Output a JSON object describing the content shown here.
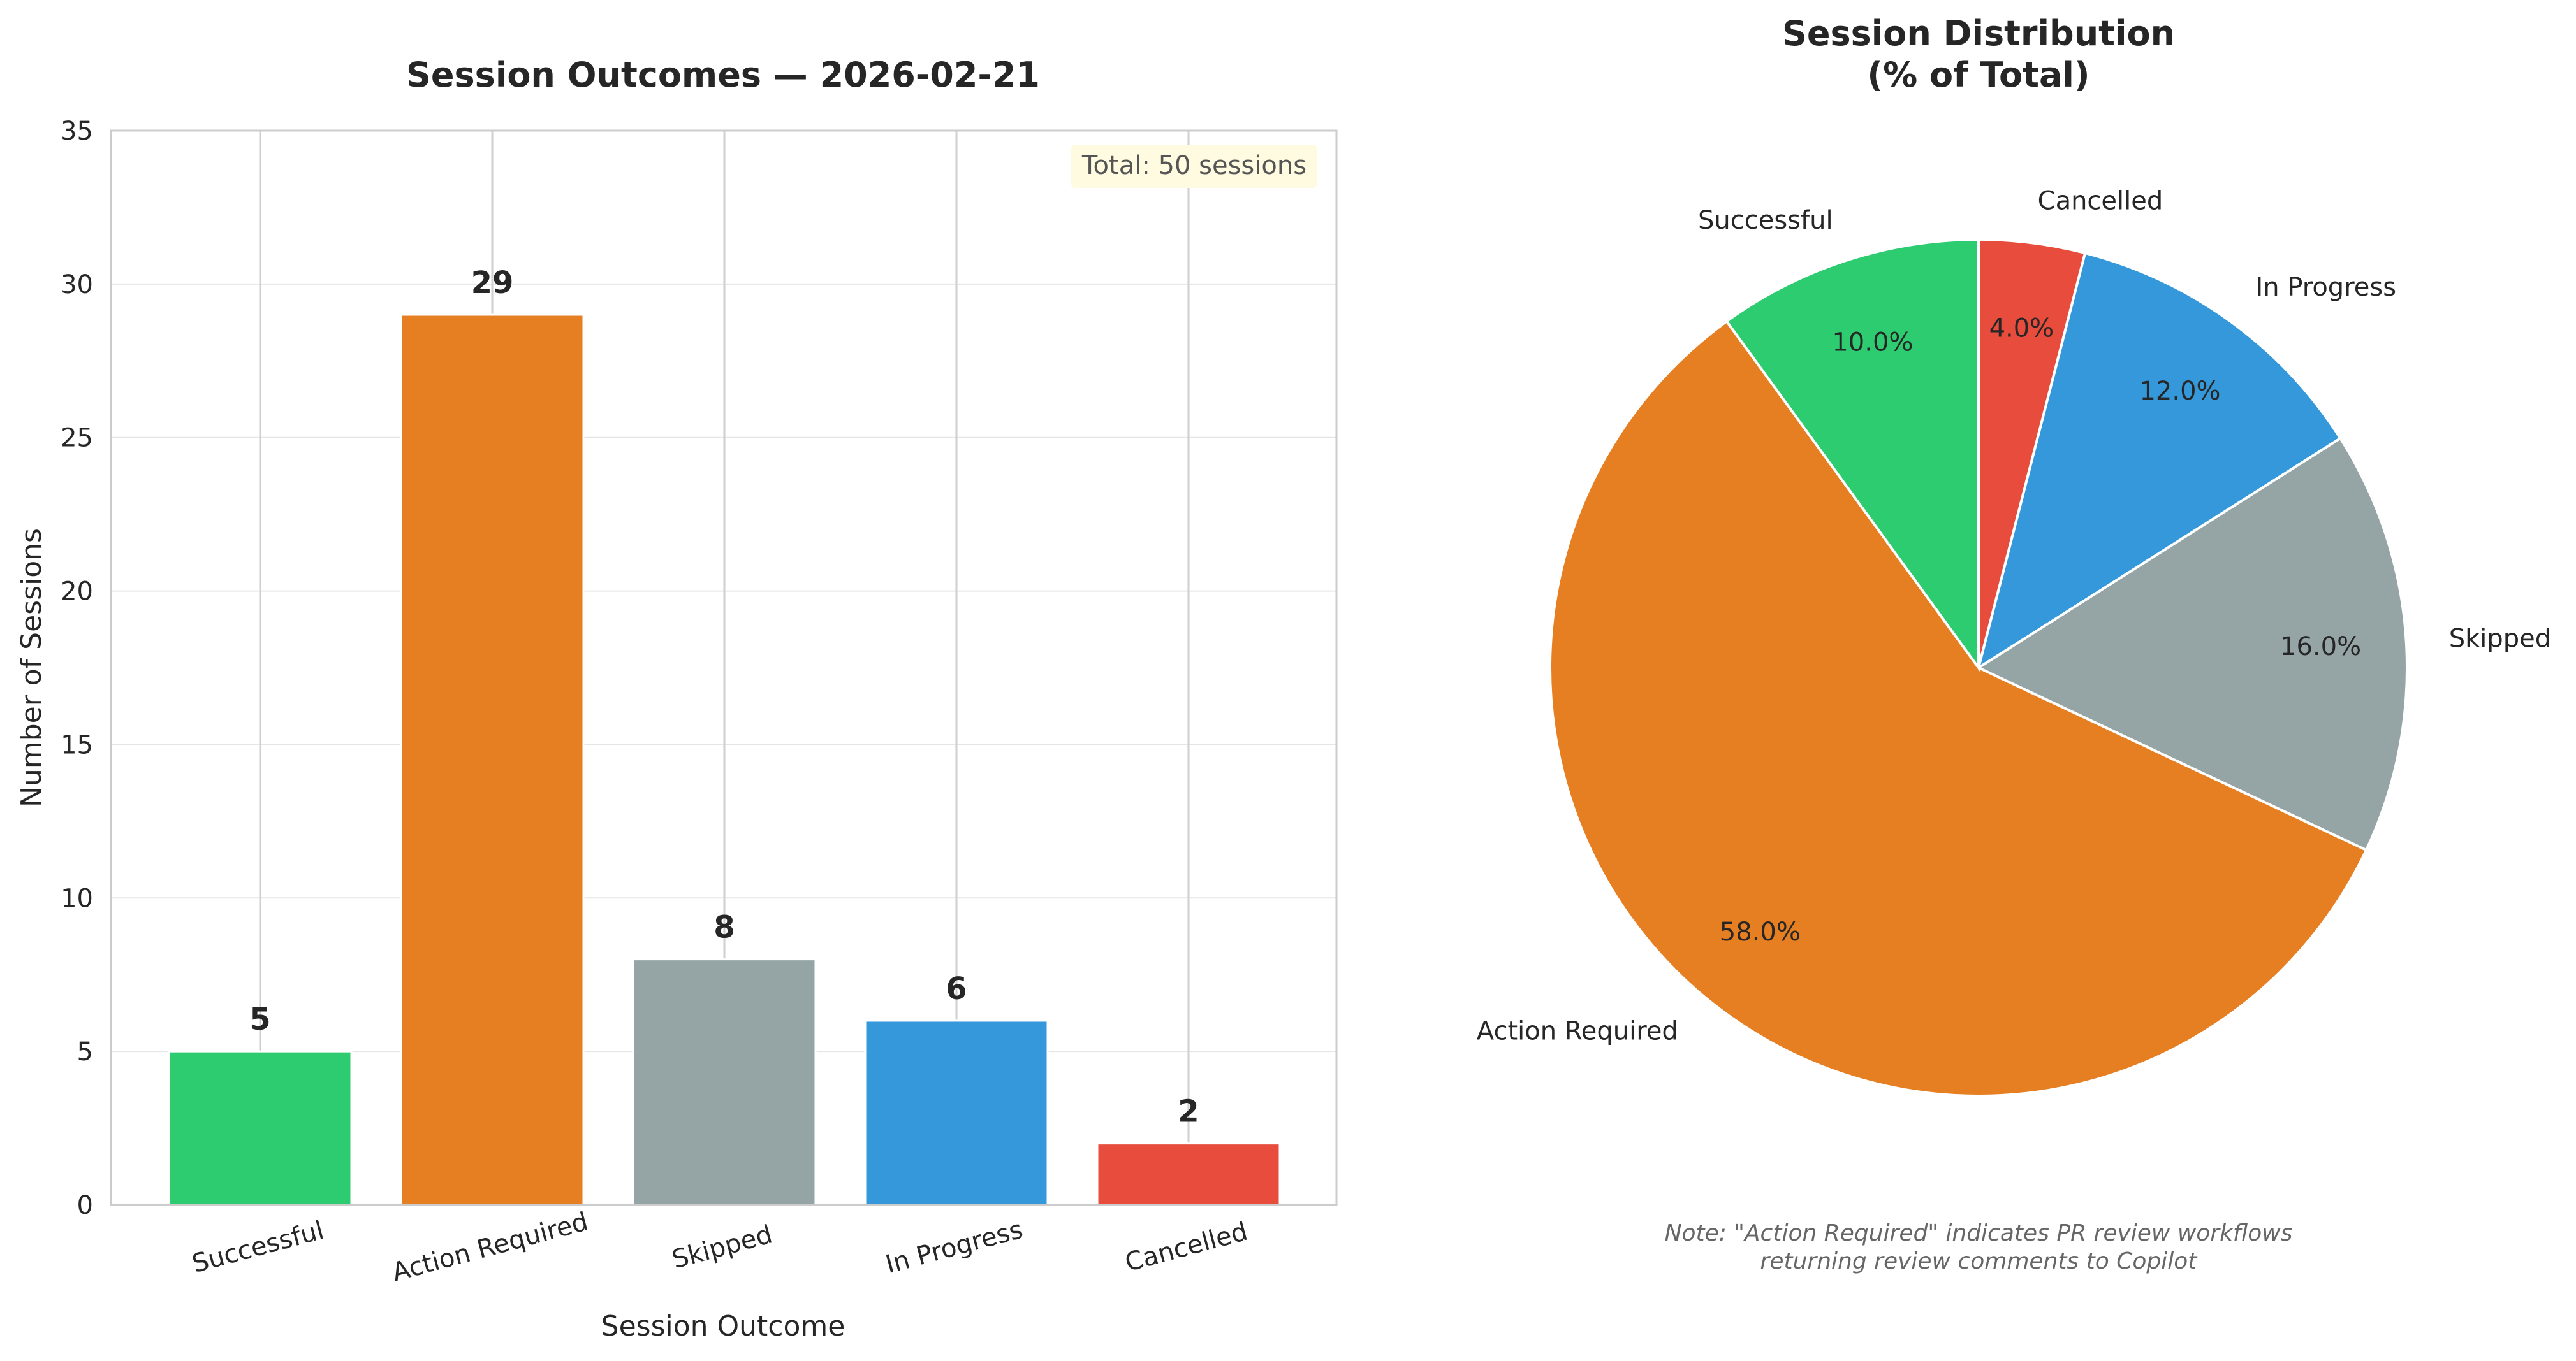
{
  "chart_data": [
    {
      "type": "bar",
      "title": "Session Outcomes — 2026-02-21",
      "xlabel": "Session Outcome",
      "ylabel": "Number of Sessions",
      "categories": [
        "Successful",
        "Action Required",
        "Skipped",
        "In Progress",
        "Cancelled"
      ],
      "values": [
        5,
        29,
        8,
        6,
        2
      ],
      "value_labels": [
        "5",
        "29",
        "8",
        "6",
        "2"
      ],
      "colors": [
        "#2ecc71",
        "#e67e22",
        "#95a5a6",
        "#3498db",
        "#e74c3c"
      ],
      "ylim": [
        0,
        35
      ],
      "yticks": [
        0,
        5,
        10,
        15,
        20,
        25,
        30,
        35
      ],
      "ytick_labels": [
        "0",
        "5",
        "10",
        "15",
        "20",
        "25",
        "30",
        "35"
      ],
      "grid": "on",
      "annotation": "Total: 50 sessions"
    },
    {
      "type": "pie",
      "title_lines": [
        "Session Distribution",
        "(% of Total)"
      ],
      "labels": [
        "Cancelled",
        "In Progress",
        "Skipped",
        "Action Required",
        "Successful"
      ],
      "values": [
        4.0,
        12.0,
        16.0,
        58.0,
        10.0
      ],
      "pct_labels": [
        "4.0%",
        "12.0%",
        "16.0%",
        "58.0%",
        "10.0%"
      ],
      "colors": [
        "#e74c3c",
        "#3498db",
        "#95a5a6",
        "#e67e22",
        "#2ecc71"
      ],
      "start": "12 o'clock",
      "direction": "clockwise",
      "note_lines": [
        "Note: \"Action Required\" indicates PR review workflows",
        "returning review comments to Copilot"
      ]
    }
  ]
}
